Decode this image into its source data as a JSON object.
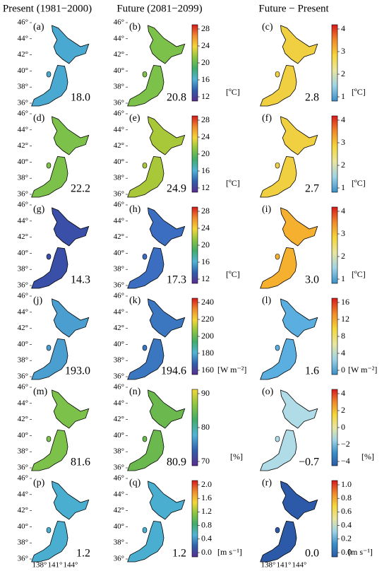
{
  "column_titles": [
    "Present (1981−2000)",
    "Future (2081−2099)",
    "Future − Present"
  ],
  "lat_labels": [
    "46°",
    "44°",
    "42°",
    "40°",
    "38°",
    "36°"
  ],
  "lon_labels": [
    "138°",
    "141°",
    "144°"
  ],
  "rows": [
    {
      "panels": [
        {
          "label": "(a)",
          "value": "18.0",
          "color": "#4aa9d0"
        },
        {
          "label": "(b)",
          "value": "20.8",
          "color": "#7cc24a"
        },
        {
          "label": "(c)",
          "value": "2.8",
          "color": "#f0d040"
        }
      ],
      "bar_abs": {
        "ticks": [
          "28",
          "24",
          "20",
          "16",
          "12"
        ],
        "unit": "[ºC]",
        "colors": [
          "#d7191c",
          "#f08a2c",
          "#f5d63a",
          "#8cc63f",
          "#3fae6a",
          "#4fb5d8",
          "#2f5fae",
          "#5a2d91"
        ]
      },
      "bar_diff": {
        "ticks": [
          "4",
          "3",
          "2",
          "1"
        ],
        "unit": "[ºC]",
        "colors": [
          "#d7191c",
          "#f08a2c",
          "#f5d63a",
          "#e8e6a0",
          "#9fd3e6",
          "#3a8fc8"
        ]
      }
    },
    {
      "panels": [
        {
          "label": "(d)",
          "value": "22.2",
          "color": "#7cc24a"
        },
        {
          "label": "(e)",
          "value": "24.9",
          "color": "#a8c83a"
        },
        {
          "label": "(f)",
          "value": "2.7",
          "color": "#f0d040"
        }
      ],
      "bar_abs": {
        "ticks": [
          "28",
          "24",
          "20",
          "16",
          "12"
        ],
        "unit": "[ºC]",
        "colors": [
          "#d7191c",
          "#f08a2c",
          "#f5d63a",
          "#8cc63f",
          "#3fae6a",
          "#4fb5d8",
          "#2f5fae",
          "#5a2d91"
        ]
      },
      "bar_diff": {
        "ticks": [
          "4",
          "3",
          "2",
          "1"
        ],
        "unit": "[ºC]",
        "colors": [
          "#d7191c",
          "#f08a2c",
          "#f5d63a",
          "#e8e6a0",
          "#9fd3e6",
          "#3a8fc8"
        ]
      }
    },
    {
      "panels": [
        {
          "label": "(g)",
          "value": "14.3",
          "color": "#3a4fa8"
        },
        {
          "label": "(h)",
          "value": "17.3",
          "color": "#3b6ec0"
        },
        {
          "label": "(i)",
          "value": "3.0",
          "color": "#f5b030"
        }
      ],
      "bar_abs": {
        "ticks": [
          "28",
          "24",
          "20",
          "16",
          "12"
        ],
        "unit": "[ºC]",
        "colors": [
          "#d7191c",
          "#f08a2c",
          "#f5d63a",
          "#8cc63f",
          "#3fae6a",
          "#4fb5d8",
          "#2f5fae",
          "#5a2d91"
        ]
      },
      "bar_diff": {
        "ticks": [
          "4",
          "3",
          "2",
          "1"
        ],
        "unit": "[ºC]",
        "colors": [
          "#d7191c",
          "#f08a2c",
          "#f5d63a",
          "#e8e6a0",
          "#9fd3e6",
          "#3a8fc8"
        ]
      }
    },
    {
      "panels": [
        {
          "label": "(j)",
          "value": "193.0",
          "color": "#4a9fd0"
        },
        {
          "label": "(k)",
          "value": "194.6",
          "color": "#3b76c0"
        },
        {
          "label": "(l)",
          "value": "1.6",
          "color": "#5aaee0"
        }
      ],
      "bar_abs": {
        "ticks": [
          "240",
          "220",
          "200",
          "180",
          "160"
        ],
        "unit": "[W m⁻²]",
        "colors": [
          "#d7191c",
          "#f08a2c",
          "#f5d63a",
          "#8cc63f",
          "#3fae6a",
          "#4fb5d8",
          "#2f5fae",
          "#5a2d91"
        ]
      },
      "bar_diff": {
        "ticks": [
          "16",
          "12",
          "8",
          "4",
          "0"
        ],
        "unit": "[W m⁻²]",
        "colors": [
          "#d7191c",
          "#f08a2c",
          "#f5d63a",
          "#e8e6a0",
          "#9fd3e6",
          "#3a8fc8"
        ]
      }
    },
    {
      "panels": [
        {
          "label": "(m)",
          "value": "81.6",
          "color": "#7cc24a"
        },
        {
          "label": "(n)",
          "value": "80.9",
          "color": "#6ab84e"
        },
        {
          "label": "(o)",
          "value": "−0.7",
          "color": "#b0dce8"
        }
      ],
      "bar_abs": {
        "ticks": [
          "90",
          "80",
          "70"
        ],
        "unit": "[%]",
        "colors": [
          "#f5d63a",
          "#8cc63f",
          "#3fae6a",
          "#4fb5d8",
          "#2f5fae",
          "#5a2d91"
        ]
      },
      "bar_diff": {
        "ticks": [
          "4",
          "2",
          "0",
          "−2",
          "−4"
        ],
        "unit": "[%]",
        "colors": [
          "#d7191c",
          "#f08a2c",
          "#f5d63a",
          "#e8e6a0",
          "#9fd3e6",
          "#3a8fc8",
          "#2a5aa8"
        ]
      }
    },
    {
      "panels": [
        {
          "label": "(p)",
          "value": "1.2",
          "color": "#4aaed0"
        },
        {
          "label": "(q)",
          "value": "1.2",
          "color": "#4aaed0"
        },
        {
          "label": "(r)",
          "value": "0.0",
          "color": "#2c5aa8"
        }
      ],
      "bar_abs": {
        "ticks": [
          "2.0",
          "1.6",
          "1.2",
          "0.8",
          "0.4",
          "0.0"
        ],
        "unit": "[m s⁻¹]",
        "colors": [
          "#d7191c",
          "#f08a2c",
          "#f5d63a",
          "#8cc63f",
          "#3fae6a",
          "#4fb5d8",
          "#2f5fae",
          "#5a2d91"
        ]
      },
      "bar_diff": {
        "ticks": [
          "1.0",
          "0.8",
          "0.6",
          "0.4",
          "0.2",
          "0.0"
        ],
        "unit": "[m s⁻¹]",
        "colors": [
          "#d7191c",
          "#f08a2c",
          "#f5d63a",
          "#e8e6a0",
          "#9fd3e6",
          "#3a8fc8",
          "#2a5aa8"
        ]
      }
    }
  ]
}
